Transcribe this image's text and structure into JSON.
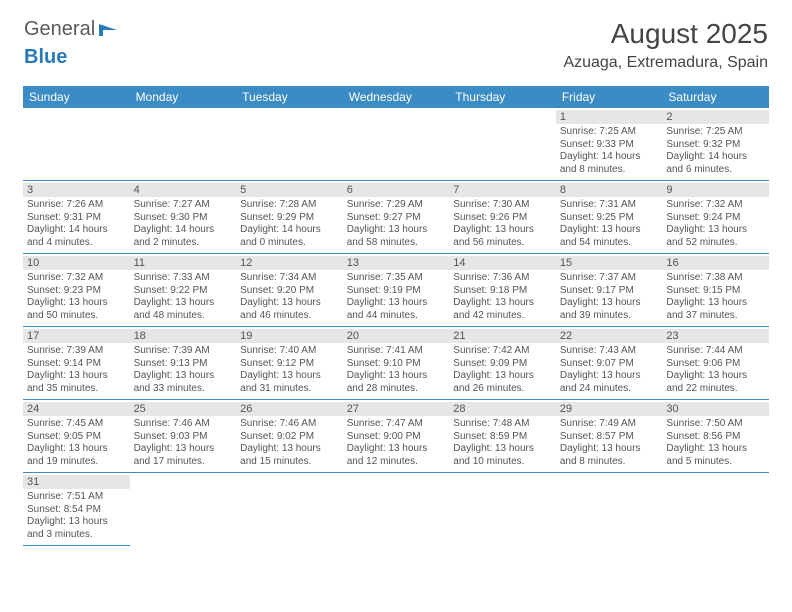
{
  "logo": {
    "text1": "General",
    "text2": "Blue"
  },
  "title": "August 2025",
  "location": "Azuaga, Extremadura, Spain",
  "colors": {
    "header_bg": "#3b8bc4",
    "header_text": "#ffffff",
    "daynum_bg": "#e6e6e6",
    "text": "#555555",
    "divider": "#3b8bc4"
  },
  "dow": [
    "Sunday",
    "Monday",
    "Tuesday",
    "Wednesday",
    "Thursday",
    "Friday",
    "Saturday"
  ],
  "weeks": [
    [
      null,
      null,
      null,
      null,
      null,
      {
        "n": "1",
        "sr": "7:25 AM",
        "ss": "9:33 PM",
        "dl": "14 hours and 8 minutes."
      },
      {
        "n": "2",
        "sr": "7:25 AM",
        "ss": "9:32 PM",
        "dl": "14 hours and 6 minutes."
      }
    ],
    [
      {
        "n": "3",
        "sr": "7:26 AM",
        "ss": "9:31 PM",
        "dl": "14 hours and 4 minutes."
      },
      {
        "n": "4",
        "sr": "7:27 AM",
        "ss": "9:30 PM",
        "dl": "14 hours and 2 minutes."
      },
      {
        "n": "5",
        "sr": "7:28 AM",
        "ss": "9:29 PM",
        "dl": "14 hours and 0 minutes."
      },
      {
        "n": "6",
        "sr": "7:29 AM",
        "ss": "9:27 PM",
        "dl": "13 hours and 58 minutes."
      },
      {
        "n": "7",
        "sr": "7:30 AM",
        "ss": "9:26 PM",
        "dl": "13 hours and 56 minutes."
      },
      {
        "n": "8",
        "sr": "7:31 AM",
        "ss": "9:25 PM",
        "dl": "13 hours and 54 minutes."
      },
      {
        "n": "9",
        "sr": "7:32 AM",
        "ss": "9:24 PM",
        "dl": "13 hours and 52 minutes."
      }
    ],
    [
      {
        "n": "10",
        "sr": "7:32 AM",
        "ss": "9:23 PM",
        "dl": "13 hours and 50 minutes."
      },
      {
        "n": "11",
        "sr": "7:33 AM",
        "ss": "9:22 PM",
        "dl": "13 hours and 48 minutes."
      },
      {
        "n": "12",
        "sr": "7:34 AM",
        "ss": "9:20 PM",
        "dl": "13 hours and 46 minutes."
      },
      {
        "n": "13",
        "sr": "7:35 AM",
        "ss": "9:19 PM",
        "dl": "13 hours and 44 minutes."
      },
      {
        "n": "14",
        "sr": "7:36 AM",
        "ss": "9:18 PM",
        "dl": "13 hours and 42 minutes."
      },
      {
        "n": "15",
        "sr": "7:37 AM",
        "ss": "9:17 PM",
        "dl": "13 hours and 39 minutes."
      },
      {
        "n": "16",
        "sr": "7:38 AM",
        "ss": "9:15 PM",
        "dl": "13 hours and 37 minutes."
      }
    ],
    [
      {
        "n": "17",
        "sr": "7:39 AM",
        "ss": "9:14 PM",
        "dl": "13 hours and 35 minutes."
      },
      {
        "n": "18",
        "sr": "7:39 AM",
        "ss": "9:13 PM",
        "dl": "13 hours and 33 minutes."
      },
      {
        "n": "19",
        "sr": "7:40 AM",
        "ss": "9:12 PM",
        "dl": "13 hours and 31 minutes."
      },
      {
        "n": "20",
        "sr": "7:41 AM",
        "ss": "9:10 PM",
        "dl": "13 hours and 28 minutes."
      },
      {
        "n": "21",
        "sr": "7:42 AM",
        "ss": "9:09 PM",
        "dl": "13 hours and 26 minutes."
      },
      {
        "n": "22",
        "sr": "7:43 AM",
        "ss": "9:07 PM",
        "dl": "13 hours and 24 minutes."
      },
      {
        "n": "23",
        "sr": "7:44 AM",
        "ss": "9:06 PM",
        "dl": "13 hours and 22 minutes."
      }
    ],
    [
      {
        "n": "24",
        "sr": "7:45 AM",
        "ss": "9:05 PM",
        "dl": "13 hours and 19 minutes."
      },
      {
        "n": "25",
        "sr": "7:46 AM",
        "ss": "9:03 PM",
        "dl": "13 hours and 17 minutes."
      },
      {
        "n": "26",
        "sr": "7:46 AM",
        "ss": "9:02 PM",
        "dl": "13 hours and 15 minutes."
      },
      {
        "n": "27",
        "sr": "7:47 AM",
        "ss": "9:00 PM",
        "dl": "13 hours and 12 minutes."
      },
      {
        "n": "28",
        "sr": "7:48 AM",
        "ss": "8:59 PM",
        "dl": "13 hours and 10 minutes."
      },
      {
        "n": "29",
        "sr": "7:49 AM",
        "ss": "8:57 PM",
        "dl": "13 hours and 8 minutes."
      },
      {
        "n": "30",
        "sr": "7:50 AM",
        "ss": "8:56 PM",
        "dl": "13 hours and 5 minutes."
      }
    ],
    [
      {
        "n": "31",
        "sr": "7:51 AM",
        "ss": "8:54 PM",
        "dl": "13 hours and 3 minutes."
      },
      null,
      null,
      null,
      null,
      null,
      null
    ]
  ],
  "labels": {
    "sunrise": "Sunrise:",
    "sunset": "Sunset:",
    "daylight": "Daylight:"
  }
}
